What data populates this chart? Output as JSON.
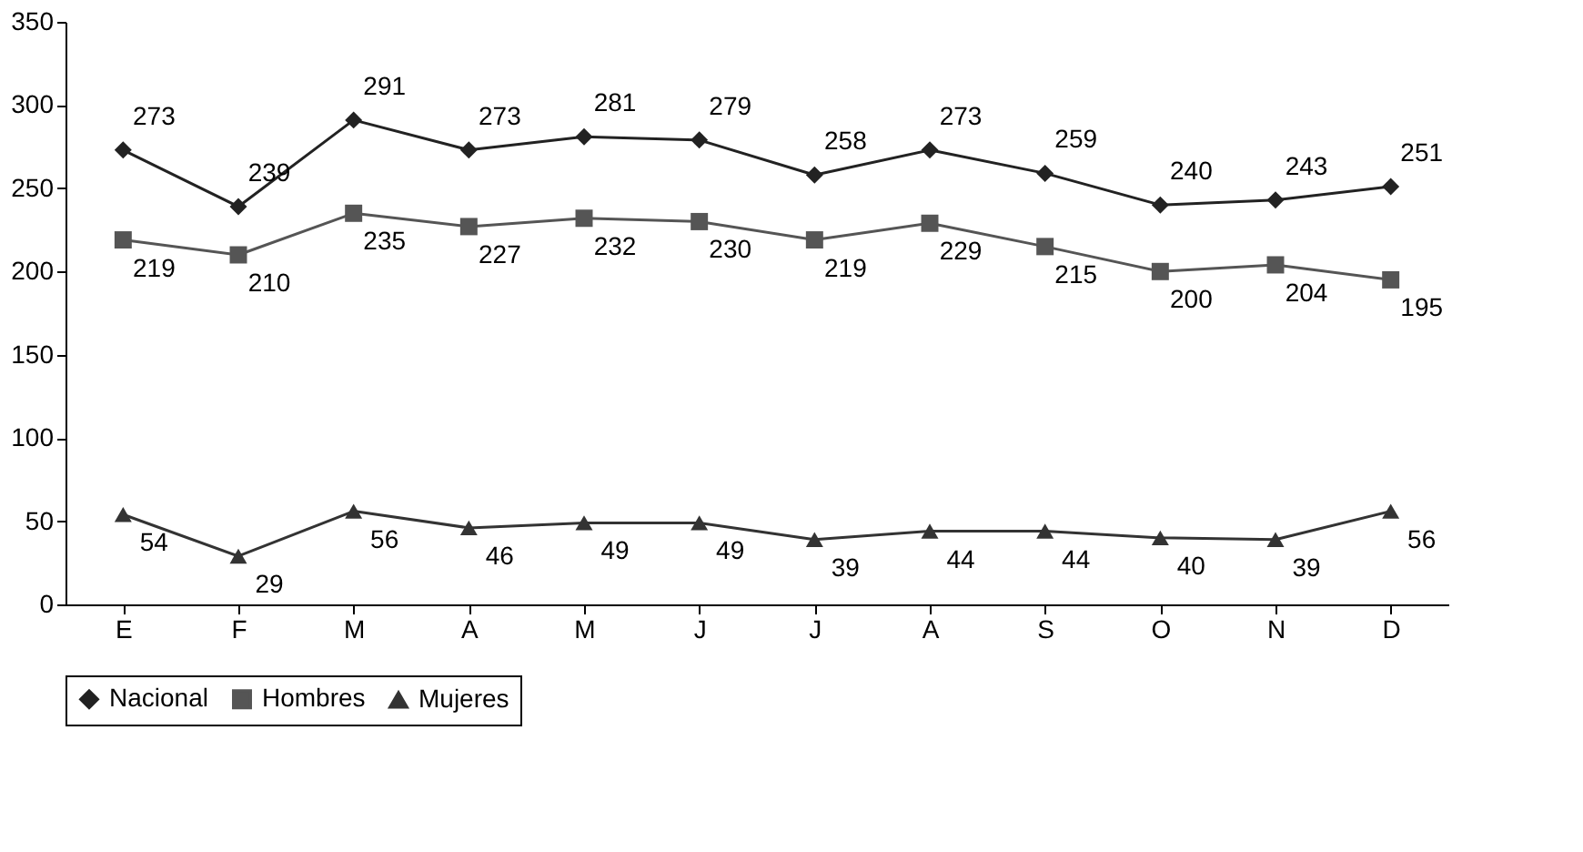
{
  "chart_data": {
    "type": "line",
    "categories": [
      "E",
      "F",
      "M",
      "A",
      "M",
      "J",
      "J",
      "A",
      "S",
      "O",
      "N",
      "D"
    ],
    "series": [
      {
        "name": "Nacional",
        "color": "#222222",
        "marker": "diamond",
        "values": [
          273,
          239,
          291,
          273,
          281,
          279,
          258,
          273,
          259,
          240,
          243,
          251
        ]
      },
      {
        "name": "Hombres",
        "color": "#555555",
        "marker": "square",
        "values": [
          219,
          210,
          235,
          227,
          232,
          230,
          219,
          229,
          215,
          200,
          204,
          195
        ]
      },
      {
        "name": "Mujeres",
        "color": "#333333",
        "marker": "triangle",
        "values": [
          54,
          29,
          56,
          46,
          49,
          49,
          39,
          44,
          44,
          40,
          39,
          56
        ]
      }
    ],
    "ylim": [
      0,
      350
    ],
    "yticks": [
      0,
      50,
      100,
      150,
      200,
      250,
      300,
      350
    ],
    "grid": false,
    "legend": "bottom",
    "data_labels": true,
    "line_style": "solid"
  }
}
